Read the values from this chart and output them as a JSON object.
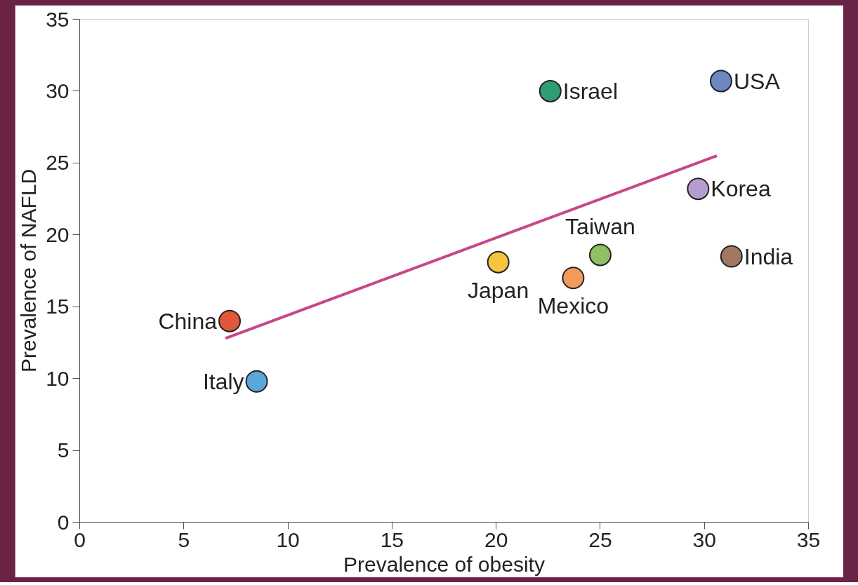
{
  "chart_data": {
    "type": "scatter",
    "xlabel": "Prevalence of obesity",
    "ylabel": "Prevalence of NAFLD",
    "xlim": [
      0,
      35
    ],
    "xticks": [
      0,
      5,
      10,
      15,
      20,
      25,
      30,
      35
    ],
    "ylim": [
      0,
      35
    ],
    "yticks": [
      0,
      5,
      10,
      15,
      20,
      25,
      30,
      35
    ],
    "grid": false,
    "marker": "circle",
    "series": [
      {
        "name": "China",
        "color": "#e0573a",
        "x": [
          7.2
        ],
        "values": [
          14.0
        ]
      },
      {
        "name": "Italy",
        "color": "#5aa7dc",
        "x": [
          8.5
        ],
        "values": [
          9.8
        ]
      },
      {
        "name": "Japan",
        "color": "#f5c542",
        "x": [
          20.1
        ],
        "values": [
          18.1
        ]
      },
      {
        "name": "Mexico",
        "color": "#f29a5c",
        "x": [
          23.7
        ],
        "values": [
          17.0
        ]
      },
      {
        "name": "Taiwan",
        "color": "#8fc063",
        "x": [
          25.0
        ],
        "values": [
          18.6
        ]
      },
      {
        "name": "Israel",
        "color": "#2e9e73",
        "x": [
          22.6
        ],
        "values": [
          30.0
        ]
      },
      {
        "name": "USA",
        "color": "#6c88c4",
        "x": [
          30.8
        ],
        "values": [
          30.7
        ]
      },
      {
        "name": "Korea",
        "color": "#b79ccf",
        "x": [
          29.7
        ],
        "values": [
          23.2
        ]
      },
      {
        "name": "India",
        "color": "#a07860",
        "x": [
          31.3
        ],
        "values": [
          18.5
        ]
      },
      {
        "type": "line",
        "marker": "none",
        "color": "#c8468a",
        "x": [
          7.0,
          30.6
        ],
        "values": [
          12.8,
          25.5
        ]
      }
    ]
  }
}
